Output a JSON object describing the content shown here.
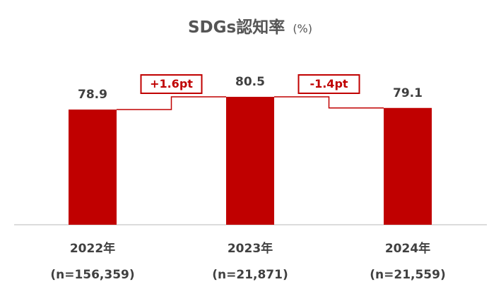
{
  "chart_data": {
    "type": "bar",
    "title": "SDGs認知率",
    "unit": "(%)",
    "categories": [
      "2022年",
      "2023年",
      "2024年"
    ],
    "sample_sizes": [
      "(n=156,359)",
      "(n=21,871)",
      "(n=21,559)"
    ],
    "values": [
      78.9,
      80.5,
      79.1
    ],
    "value_labels": [
      "78.9",
      "80.5",
      "79.1"
    ],
    "differences": [
      "+1.6pt",
      "-1.4pt"
    ],
    "ylim": [
      0,
      100
    ],
    "grid": false,
    "legend": "none",
    "xlabel": "",
    "ylabel": ""
  },
  "colors": {
    "bar": "#c00000",
    "connector": "#c00000",
    "axis": "#d0d0d0",
    "title": "#555555",
    "label": "#404040"
  }
}
